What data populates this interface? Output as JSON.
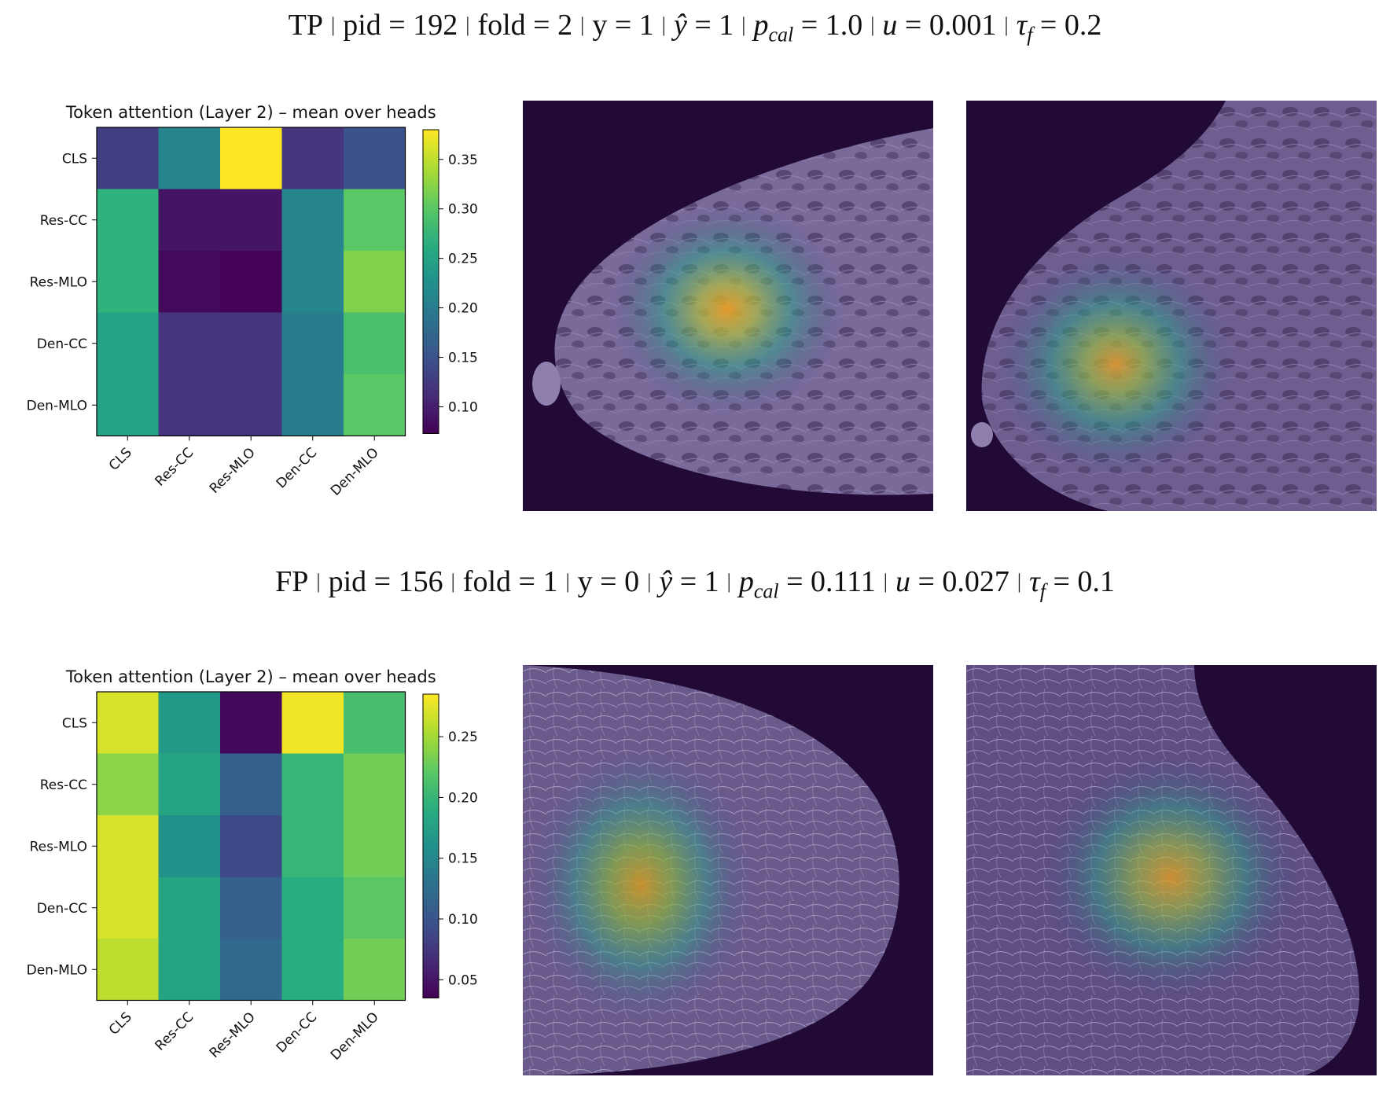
{
  "panels": [
    {
      "caption": {
        "outcome": "TP",
        "pid": "pid = 192",
        "fold": "fold = 2",
        "y": "y = 1",
        "yhat_sym": "ŷ",
        "yhat_val": "= 1",
        "p_sym": "p",
        "p_sub": "cal",
        "p_val": "= 1.0",
        "u_sym": "u",
        "u_val": "= 0.001",
        "tau_sym": "τ",
        "tau_sub": "f",
        "tau_val": "= 0.2"
      },
      "images": [
        {
          "name": "mammogram-cc-overlay",
          "view": "CC"
        },
        {
          "name": "mammogram-mlo-overlay",
          "view": "MLO"
        }
      ]
    },
    {
      "caption": {
        "outcome": "FP",
        "pid": "pid = 156",
        "fold": "fold = 1",
        "y": "y = 0",
        "yhat_sym": "ŷ",
        "yhat_val": "= 1",
        "p_sym": "p",
        "p_sub": "cal",
        "p_val": "= 0.111",
        "u_sym": "u",
        "u_val": "= 0.027",
        "tau_sym": "τ",
        "tau_sub": "f",
        "tau_val": "= 0.1"
      },
      "images": [
        {
          "name": "mammogram-cc-overlay",
          "view": "CC"
        },
        {
          "name": "mammogram-mlo-overlay",
          "view": "MLO"
        }
      ]
    }
  ],
  "chart_data": [
    {
      "type": "heatmap",
      "title": "Token attention (Layer 2) – mean over heads",
      "rows": [
        "CLS",
        "Res-CC",
        "Res-MLO",
        "Den-CC",
        "Den-MLO"
      ],
      "cols": [
        "CLS",
        "Res-CC",
        "Res-MLO",
        "Den-CC",
        "Den-MLO"
      ],
      "values": [
        [
          0.13,
          0.21,
          0.38,
          0.12,
          0.15
        ],
        [
          0.27,
          0.09,
          0.09,
          0.21,
          0.3
        ],
        [
          0.27,
          0.08,
          0.075,
          0.21,
          0.32
        ],
        [
          0.25,
          0.12,
          0.12,
          0.2,
          0.29
        ],
        [
          0.25,
          0.12,
          0.12,
          0.2,
          0.3
        ]
      ],
      "colormap": "viridis",
      "vmin": 0.073,
      "vmax": 0.38,
      "colorbar_ticks": [
        0.1,
        0.15,
        0.2,
        0.25,
        0.3,
        0.35
      ]
    },
    {
      "type": "heatmap",
      "title": "Token attention (Layer 2) – mean over heads",
      "rows": [
        "CLS",
        "Res-CC",
        "Res-MLO",
        "Den-CC",
        "Den-MLO"
      ],
      "cols": [
        "CLS",
        "Res-CC",
        "Res-MLO",
        "Den-CC",
        "Den-MLO"
      ],
      "values": [
        [
          0.27,
          0.17,
          0.04,
          0.28,
          0.21
        ],
        [
          0.24,
          0.18,
          0.11,
          0.2,
          0.23
        ],
        [
          0.27,
          0.16,
          0.09,
          0.2,
          0.23
        ],
        [
          0.27,
          0.18,
          0.11,
          0.19,
          0.22
        ],
        [
          0.26,
          0.18,
          0.12,
          0.19,
          0.23
        ]
      ],
      "colormap": "viridis",
      "vmin": 0.035,
      "vmax": 0.285,
      "colorbar_ticks": [
        0.05,
        0.1,
        0.15,
        0.2,
        0.25
      ]
    }
  ]
}
